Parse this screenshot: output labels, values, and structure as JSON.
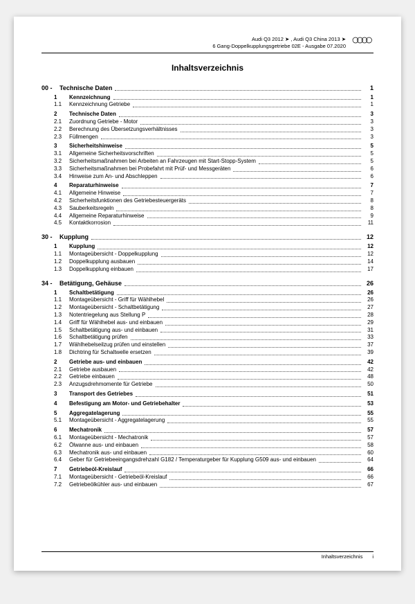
{
  "header": {
    "line1": "Audi Q3 2012 ➤ , Audi Q3 China 2013 ➤",
    "line2": "6 Gang-Doppelkupplungsgetriebe 02E - Ausgabe 07.2020"
  },
  "title": "Inhaltsverzeichnis",
  "footer": {
    "label": "Inhaltsverzeichnis",
    "page": "i"
  },
  "toc": [
    {
      "type": "chapter",
      "num": "00 -",
      "label": "Technische Daten",
      "page": "1"
    },
    {
      "type": "sec",
      "indent": 1,
      "bold": true,
      "num": "1",
      "label": "Kennzeichnung",
      "page": "1"
    },
    {
      "type": "item",
      "indent": 1,
      "num": "1.1",
      "label": "Kennzeichnung Getriebe",
      "page": "1"
    },
    {
      "type": "sec",
      "indent": 1,
      "bold": true,
      "num": "2",
      "label": "Technische Daten",
      "page": "3"
    },
    {
      "type": "item",
      "indent": 1,
      "num": "2.1",
      "label": "Zuordnung Getriebe - Motor",
      "page": "3"
    },
    {
      "type": "item",
      "indent": 1,
      "num": "2.2",
      "label": "Berechnung des Übersetzungsverhältnisses",
      "page": "3"
    },
    {
      "type": "item",
      "indent": 1,
      "num": "2.3",
      "label": "Füllmengen",
      "page": "3"
    },
    {
      "type": "sec",
      "indent": 1,
      "bold": true,
      "num": "3",
      "label": "Sicherheitshinweise",
      "page": "5"
    },
    {
      "type": "item",
      "indent": 1,
      "num": "3.1",
      "label": "Allgemeine Sicherheitsvorschriften",
      "page": "5"
    },
    {
      "type": "item",
      "indent": 1,
      "num": "3.2",
      "label": "Sicherheitsmaßnahmen bei Arbeiten an Fahrzeugen mit Start-Stopp-System",
      "page": "5"
    },
    {
      "type": "item",
      "indent": 1,
      "num": "3.3",
      "label": "Sicherheitsmaßnahmen bei Probefahrt mit Prüf- und Messgeräten",
      "page": "6"
    },
    {
      "type": "item",
      "indent": 1,
      "num": "3.4",
      "label": "Hinweise zum An- und Abschleppen",
      "page": "6"
    },
    {
      "type": "sec",
      "indent": 1,
      "bold": true,
      "num": "4",
      "label": "Reparaturhinweise",
      "page": "7"
    },
    {
      "type": "item",
      "indent": 1,
      "num": "4.1",
      "label": "Allgemeine Hinweise",
      "page": "7"
    },
    {
      "type": "item",
      "indent": 1,
      "num": "4.2",
      "label": "Sicherheitsfunktionen des Getriebesteuergeräts",
      "page": "8"
    },
    {
      "type": "item",
      "indent": 1,
      "num": "4.3",
      "label": "Sauberkeitsregeln",
      "page": "8"
    },
    {
      "type": "item",
      "indent": 1,
      "num": "4.4",
      "label": "Allgemeine Reparaturhinweise",
      "page": "9"
    },
    {
      "type": "item",
      "indent": 1,
      "num": "4.5",
      "label": "Kontaktkorrosion",
      "page": "11"
    },
    {
      "type": "chapter",
      "num": "30 -",
      "label": "Kupplung",
      "page": "12"
    },
    {
      "type": "sec",
      "indent": 1,
      "bold": true,
      "num": "1",
      "label": "Kupplung",
      "page": "12"
    },
    {
      "type": "item",
      "indent": 1,
      "num": "1.1",
      "label": "Montageübersicht - Doppelkupplung",
      "page": "12"
    },
    {
      "type": "item",
      "indent": 1,
      "num": "1.2",
      "label": "Doppelkupplung ausbauen",
      "page": "14"
    },
    {
      "type": "item",
      "indent": 1,
      "num": "1.3",
      "label": "Doppelkupplung einbauen",
      "page": "17"
    },
    {
      "type": "chapter",
      "num": "34 -",
      "label": "Betätigung, Gehäuse",
      "page": "26"
    },
    {
      "type": "sec",
      "indent": 1,
      "bold": true,
      "num": "1",
      "label": "Schaltbetätigung",
      "page": "26"
    },
    {
      "type": "item",
      "indent": 1,
      "num": "1.1",
      "label": "Montageübersicht - Griff für Wählhebel",
      "page": "26"
    },
    {
      "type": "item",
      "indent": 1,
      "num": "1.2",
      "label": "Montageübersicht - Schaltbetätigung",
      "page": "27"
    },
    {
      "type": "item",
      "indent": 1,
      "num": "1.3",
      "label": "Notentriegelung aus Stellung P",
      "page": "28"
    },
    {
      "type": "item",
      "indent": 1,
      "num": "1.4",
      "label": "Griff für Wählhebel aus- und einbauen",
      "page": "29"
    },
    {
      "type": "item",
      "indent": 1,
      "num": "1.5",
      "label": "Schaltbetätigung aus- und einbauen",
      "page": "31"
    },
    {
      "type": "item",
      "indent": 1,
      "num": "1.6",
      "label": "Schaltbetätigung prüfen",
      "page": "33"
    },
    {
      "type": "item",
      "indent": 1,
      "num": "1.7",
      "label": "Wählhebelseilzug prüfen und einstellen",
      "page": "37"
    },
    {
      "type": "item",
      "indent": 1,
      "num": "1.8",
      "label": "Dichtring für Schaltwelle ersetzen",
      "page": "39"
    },
    {
      "type": "sec",
      "indent": 1,
      "bold": true,
      "num": "2",
      "label": "Getriebe aus- und einbauen",
      "page": "42"
    },
    {
      "type": "item",
      "indent": 1,
      "num": "2.1",
      "label": "Getriebe ausbauen",
      "page": "42"
    },
    {
      "type": "item",
      "indent": 1,
      "num": "2.2",
      "label": "Getriebe einbauen",
      "page": "48"
    },
    {
      "type": "item",
      "indent": 1,
      "num": "2.3",
      "label": "Anzugsdrehmomente für Getriebe",
      "page": "50"
    },
    {
      "type": "sec",
      "indent": 1,
      "bold": true,
      "num": "3",
      "label": "Transport des Getriebes",
      "page": "51"
    },
    {
      "type": "sec",
      "indent": 1,
      "bold": true,
      "num": "4",
      "label": "Befestigung am Motor- und Getriebehalter",
      "page": "53"
    },
    {
      "type": "sec",
      "indent": 1,
      "bold": true,
      "num": "5",
      "label": "Aggregatelagerung",
      "page": "55"
    },
    {
      "type": "item",
      "indent": 1,
      "num": "5.1",
      "label": "Montageübersicht - Aggregatelagerung",
      "page": "55"
    },
    {
      "type": "sec",
      "indent": 1,
      "bold": true,
      "num": "6",
      "label": "Mechatronik",
      "page": "57"
    },
    {
      "type": "item",
      "indent": 1,
      "num": "6.1",
      "label": "Montageübersicht - Mechatronik",
      "page": "57"
    },
    {
      "type": "item",
      "indent": 1,
      "num": "6.2",
      "label": "Ölwanne aus- und einbauen",
      "page": "58"
    },
    {
      "type": "item",
      "indent": 1,
      "num": "6.3",
      "label": "Mechatronik aus- und einbauen",
      "page": "60"
    },
    {
      "type": "item",
      "indent": 1,
      "num": "6.4",
      "label": "Geber für Getriebeeingangsdrehzahl G182 / Temperaturgeber für Kupplung G509 aus- und einbauen",
      "page": "64",
      "wrap": true
    },
    {
      "type": "sec",
      "indent": 1,
      "bold": true,
      "num": "7",
      "label": "Getriebeöl-Kreislauf",
      "page": "66"
    },
    {
      "type": "item",
      "indent": 1,
      "num": "7.1",
      "label": "Montageübersicht - Getriebeöl-Kreislauf",
      "page": "66"
    },
    {
      "type": "item",
      "indent": 1,
      "num": "7.2",
      "label": "Getriebeölkühler aus- und einbauen",
      "page": "67"
    }
  ]
}
